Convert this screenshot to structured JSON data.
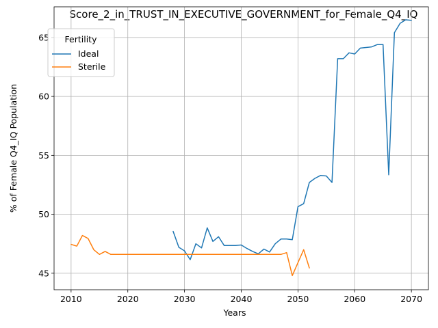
{
  "chart_data": {
    "type": "line",
    "title": "Score_2_in_TRUST_IN_EXECUTIVE_GOVERNMENT_for_Female_Q4_IQ",
    "xlabel": "Years",
    "ylabel": "% of Female Q4_IQ Population",
    "xlim": [
      2007,
      2073
    ],
    "ylim": [
      43.6,
      67.6
    ],
    "xticks": [
      2010,
      2020,
      2030,
      2040,
      2050,
      2060,
      2070
    ],
    "yticks": [
      45,
      50,
      55,
      60,
      65
    ],
    "grid": true,
    "legend": {
      "title": "Fertility",
      "position": "top-left"
    },
    "series": [
      {
        "name": "Ideal",
        "color": "#1f77b4",
        "x": [
          2028,
          2029,
          2030,
          2031,
          2032,
          2033,
          2034,
          2035,
          2036,
          2037,
          2038,
          2039,
          2040,
          2041,
          2042,
          2043,
          2044,
          2045,
          2046,
          2047,
          2048,
          2049,
          2050,
          2051,
          2052,
          2053,
          2054,
          2055,
          2056,
          2057,
          2058,
          2059,
          2060,
          2061,
          2062,
          2063,
          2064,
          2065,
          2066,
          2067,
          2068,
          2069,
          2070
        ],
        "y": [
          48.55,
          47.2,
          46.9,
          46.15,
          47.5,
          47.15,
          48.85,
          47.7,
          48.1,
          47.35,
          47.35,
          47.35,
          47.4,
          47.1,
          46.85,
          46.65,
          47.05,
          46.8,
          47.5,
          47.9,
          47.9,
          47.85,
          50.65,
          50.9,
          52.7,
          53.05,
          53.3,
          53.25,
          52.7,
          63.2,
          63.2,
          63.7,
          63.6,
          64.1,
          64.15,
          64.2,
          64.4,
          64.4,
          53.35,
          65.4,
          66.2,
          66.5,
          66.45
        ]
      },
      {
        "name": "Sterile",
        "color": "#ff7f0e",
        "x": [
          2010,
          2011,
          2012,
          2013,
          2014,
          2015,
          2016,
          2017,
          2018,
          2019,
          2020,
          2021,
          2022,
          2023,
          2024,
          2025,
          2026,
          2027,
          2028,
          2029,
          2030,
          2031,
          2032,
          2033,
          2034,
          2035,
          2036,
          2037,
          2038,
          2039,
          2040,
          2041,
          2042,
          2043,
          2044,
          2045,
          2046,
          2047,
          2048,
          2049,
          2050,
          2051,
          2052
        ],
        "y": [
          47.45,
          47.3,
          48.2,
          47.95,
          47.0,
          46.6,
          46.85,
          46.6,
          46.6,
          46.6,
          46.6,
          46.6,
          46.6,
          46.6,
          46.6,
          46.6,
          46.6,
          46.6,
          46.6,
          46.6,
          46.6,
          46.6,
          46.6,
          46.6,
          46.6,
          46.6,
          46.6,
          46.6,
          46.6,
          46.6,
          46.6,
          46.6,
          46.6,
          46.6,
          46.6,
          46.6,
          46.6,
          46.6,
          46.75,
          44.8,
          45.9,
          47.0,
          45.45
        ]
      }
    ]
  }
}
